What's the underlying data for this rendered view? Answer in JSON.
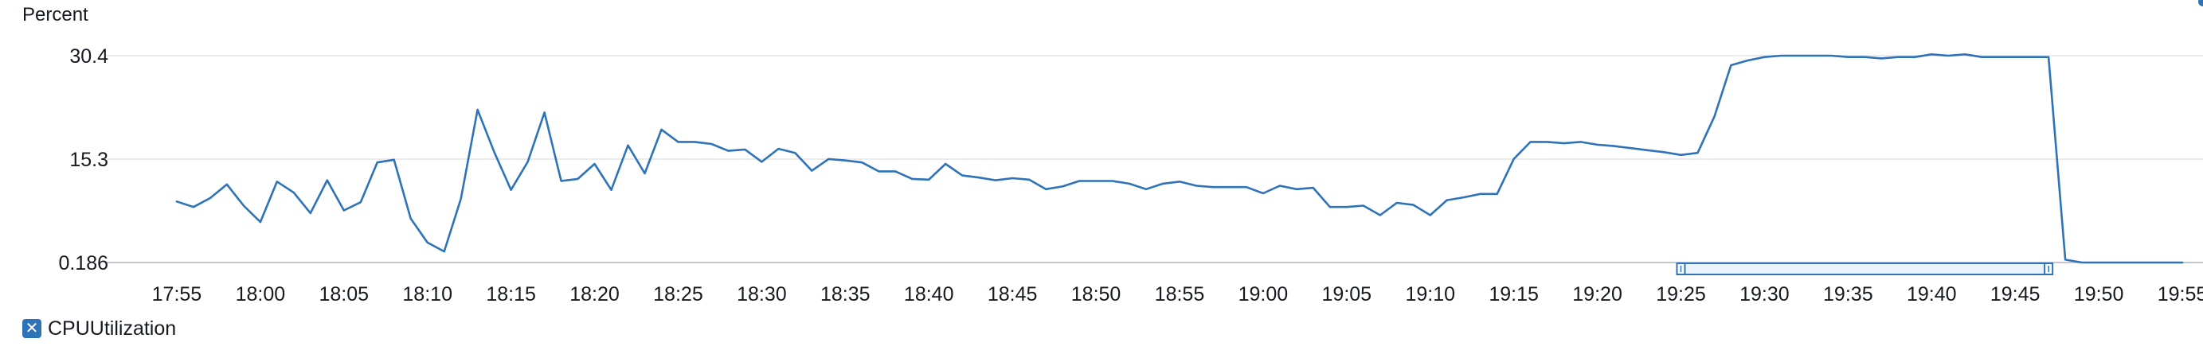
{
  "chart_data": {
    "type": "line",
    "ylabel": "Percent",
    "y_ticks": [
      "30.4",
      "15.3",
      "0.186"
    ],
    "ylim": [
      0.186,
      30.4
    ],
    "x_ticks": [
      "17:55",
      "18:00",
      "18:05",
      "18:10",
      "18:15",
      "18:20",
      "18:25",
      "18:30",
      "18:35",
      "18:40",
      "18:45",
      "18:50",
      "18:55",
      "19:00",
      "19:05",
      "19:10",
      "19:15",
      "19:20",
      "19:25",
      "19:30",
      "19:35",
      "19:40",
      "19:45",
      "19:50",
      "19:55"
    ],
    "xlim": [
      "17:51",
      "19:55"
    ],
    "grid": true,
    "legend": "bottom-left",
    "series": [
      {
        "name": "CPUUtilization",
        "color": "#2e73b8",
        "points": [
          [
            "17:55",
            9.1
          ],
          [
            "17:56",
            8.3
          ],
          [
            "17:57",
            9.6
          ],
          [
            "17:58",
            11.6
          ],
          [
            "17:59",
            8.5
          ],
          [
            "18:00",
            6.1
          ],
          [
            "18:01",
            12.0
          ],
          [
            "18:02",
            10.4
          ],
          [
            "18:03",
            7.4
          ],
          [
            "18:04",
            12.2
          ],
          [
            "18:05",
            7.8
          ],
          [
            "18:06",
            9.0
          ],
          [
            "18:07",
            14.8
          ],
          [
            "18:08",
            15.2
          ],
          [
            "18:09",
            6.6
          ],
          [
            "18:10",
            3.1
          ],
          [
            "18:11",
            1.8
          ],
          [
            "18:12",
            9.5
          ],
          [
            "18:13",
            22.5
          ],
          [
            "18:14",
            16.3
          ],
          [
            "18:15",
            10.8
          ],
          [
            "18:16",
            14.9
          ],
          [
            "18:17",
            22.1
          ],
          [
            "18:18",
            12.1
          ],
          [
            "18:19",
            12.4
          ],
          [
            "18:20",
            14.6
          ],
          [
            "18:21",
            10.8
          ],
          [
            "18:22",
            17.3
          ],
          [
            "18:23",
            13.2
          ],
          [
            "18:24",
            19.6
          ],
          [
            "18:25",
            17.8
          ],
          [
            "18:26",
            17.8
          ],
          [
            "18:27",
            17.5
          ],
          [
            "18:28",
            16.5
          ],
          [
            "18:29",
            16.7
          ],
          [
            "18:30",
            14.9
          ],
          [
            "18:31",
            16.8
          ],
          [
            "18:32",
            16.2
          ],
          [
            "18:33",
            13.6
          ],
          [
            "18:34",
            15.3
          ],
          [
            "18:35",
            15.1
          ],
          [
            "18:36",
            14.8
          ],
          [
            "18:37",
            13.5
          ],
          [
            "18:38",
            13.5
          ],
          [
            "18:39",
            12.4
          ],
          [
            "18:40",
            12.3
          ],
          [
            "18:41",
            14.6
          ],
          [
            "18:42",
            12.9
          ],
          [
            "18:43",
            12.6
          ],
          [
            "18:44",
            12.2
          ],
          [
            "18:45",
            12.5
          ],
          [
            "18:46",
            12.3
          ],
          [
            "18:47",
            10.9
          ],
          [
            "18:48",
            11.3
          ],
          [
            "18:49",
            12.1
          ],
          [
            "18:50",
            12.1
          ],
          [
            "18:51",
            12.1
          ],
          [
            "18:52",
            11.7
          ],
          [
            "18:53",
            10.9
          ],
          [
            "18:54",
            11.7
          ],
          [
            "18:55",
            12.0
          ],
          [
            "18:56",
            11.4
          ],
          [
            "18:57",
            11.2
          ],
          [
            "18:58",
            11.2
          ],
          [
            "18:59",
            11.2
          ],
          [
            "19:00",
            10.3
          ],
          [
            "19:01",
            11.4
          ],
          [
            "19:02",
            10.9
          ],
          [
            "19:03",
            11.1
          ],
          [
            "19:04",
            8.3
          ],
          [
            "19:05",
            8.3
          ],
          [
            "19:06",
            8.5
          ],
          [
            "19:07",
            7.1
          ],
          [
            "19:08",
            8.9
          ],
          [
            "19:09",
            8.6
          ],
          [
            "19:10",
            7.1
          ],
          [
            "19:11",
            9.3
          ],
          [
            "19:12",
            9.7
          ],
          [
            "19:13",
            10.2
          ],
          [
            "19:14",
            10.2
          ],
          [
            "19:15",
            15.3
          ],
          [
            "19:16",
            17.8
          ],
          [
            "19:17",
            17.8
          ],
          [
            "19:18",
            17.6
          ],
          [
            "19:19",
            17.8
          ],
          [
            "19:20",
            17.4
          ],
          [
            "19:21",
            17.2
          ],
          [
            "19:22",
            16.9
          ],
          [
            "19:23",
            16.6
          ],
          [
            "19:24",
            16.3
          ],
          [
            "19:25",
            15.9
          ],
          [
            "19:26",
            16.2
          ],
          [
            "19:27",
            21.5
          ],
          [
            "19:28",
            29.0
          ],
          [
            "19:29",
            29.7
          ],
          [
            "19:30",
            30.2
          ],
          [
            "19:31",
            30.4
          ],
          [
            "19:32",
            30.4
          ],
          [
            "19:33",
            30.4
          ],
          [
            "19:34",
            30.4
          ],
          [
            "19:35",
            30.2
          ],
          [
            "19:36",
            30.2
          ],
          [
            "19:37",
            30.0
          ],
          [
            "19:38",
            30.2
          ],
          [
            "19:39",
            30.2
          ],
          [
            "19:40",
            30.6
          ],
          [
            "19:41",
            30.4
          ],
          [
            "19:42",
            30.6
          ],
          [
            "19:43",
            30.2
          ],
          [
            "19:44",
            30.2
          ],
          [
            "19:45",
            30.2
          ],
          [
            "19:46",
            30.2
          ],
          [
            "19:47",
            30.2
          ],
          [
            "19:48",
            0.6
          ],
          [
            "19:49",
            0.186
          ],
          [
            "19:50",
            0.186
          ],
          [
            "19:51",
            0.186
          ],
          [
            "19:52",
            0.186
          ],
          [
            "19:53",
            0.186
          ],
          [
            "19:54",
            0.186
          ],
          [
            "19:55",
            0.186
          ]
        ]
      }
    ],
    "selection_range": [
      "19:25",
      "19:47"
    ]
  },
  "colors": {
    "series": "#2e73b8",
    "grid": "#e9ebed",
    "axis": "#c6c6cd",
    "selection_fill": "#eaf3fc",
    "selection_stroke": "#2e73b8",
    "text": "#16191f"
  },
  "legend_item": {
    "icon": "close-x-icon"
  }
}
